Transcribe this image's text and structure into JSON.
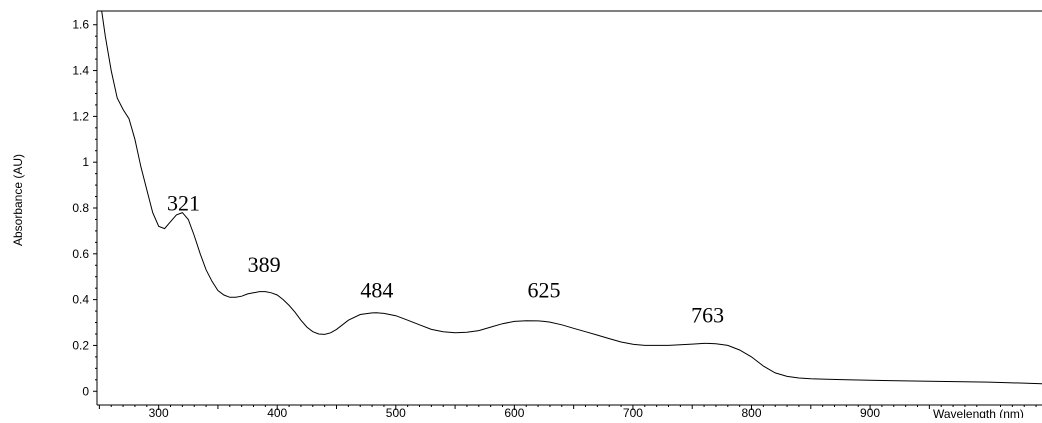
{
  "chart_data": {
    "type": "line",
    "title": "",
    "xlabel": "Wavelength (nm)",
    "ylabel": "Absorbance (AU)",
    "xlim": [
      248,
      1045
    ],
    "ylim": [
      -0.06,
      1.66
    ],
    "x_ticks": [
      300,
      400,
      500,
      600,
      700,
      800,
      900
    ],
    "y_ticks": [
      0,
      0.2,
      0.4,
      0.6,
      0.8,
      1,
      1.2,
      1.4,
      1.6
    ],
    "y_tick_labels": [
      "0",
      "0.2",
      "0.4",
      "0.6",
      "0.8",
      "1",
      "1.2",
      "1.4",
      "1.6"
    ],
    "grid": false,
    "line_color": "#000000",
    "series": [
      {
        "x": [
          252,
          255,
          260,
          265,
          270,
          275,
          280,
          285,
          290,
          295,
          300,
          305,
          310,
          315,
          320,
          325,
          330,
          335,
          340,
          345,
          350,
          355,
          360,
          365,
          370,
          375,
          380,
          385,
          390,
          395,
          400,
          405,
          410,
          415,
          420,
          425,
          430,
          435,
          440,
          445,
          450,
          460,
          470,
          480,
          484,
          490,
          500,
          510,
          520,
          530,
          540,
          550,
          560,
          570,
          580,
          590,
          600,
          610,
          620,
          625,
          630,
          640,
          650,
          660,
          670,
          680,
          690,
          700,
          710,
          720,
          730,
          740,
          750,
          760,
          763,
          770,
          780,
          790,
          800,
          810,
          820,
          830,
          840,
          850,
          860,
          880,
          900,
          950,
          1000,
          1045
        ],
        "y": [
          1.66,
          1.55,
          1.4,
          1.28,
          1.23,
          1.19,
          1.1,
          0.98,
          0.88,
          0.78,
          0.72,
          0.71,
          0.74,
          0.77,
          0.78,
          0.75,
          0.68,
          0.6,
          0.53,
          0.48,
          0.44,
          0.42,
          0.41,
          0.41,
          0.415,
          0.425,
          0.43,
          0.435,
          0.435,
          0.43,
          0.42,
          0.4,
          0.375,
          0.345,
          0.31,
          0.28,
          0.26,
          0.25,
          0.248,
          0.255,
          0.27,
          0.31,
          0.335,
          0.342,
          0.343,
          0.34,
          0.33,
          0.31,
          0.29,
          0.27,
          0.26,
          0.255,
          0.258,
          0.265,
          0.28,
          0.295,
          0.305,
          0.308,
          0.307,
          0.305,
          0.302,
          0.29,
          0.275,
          0.26,
          0.245,
          0.23,
          0.215,
          0.205,
          0.2,
          0.2,
          0.2,
          0.203,
          0.206,
          0.209,
          0.209,
          0.207,
          0.2,
          0.18,
          0.15,
          0.11,
          0.08,
          0.065,
          0.058,
          0.055,
          0.053,
          0.05,
          0.048,
          0.044,
          0.04,
          0.033
        ]
      }
    ],
    "annotations": [
      {
        "text": "321",
        "x": 321,
        "y": 0.79
      },
      {
        "text": "389",
        "x": 389,
        "y": 0.52
      },
      {
        "text": "484",
        "x": 484,
        "y": 0.41
      },
      {
        "text": "625",
        "x": 625,
        "y": 0.41
      },
      {
        "text": "763",
        "x": 763,
        "y": 0.3
      }
    ]
  }
}
